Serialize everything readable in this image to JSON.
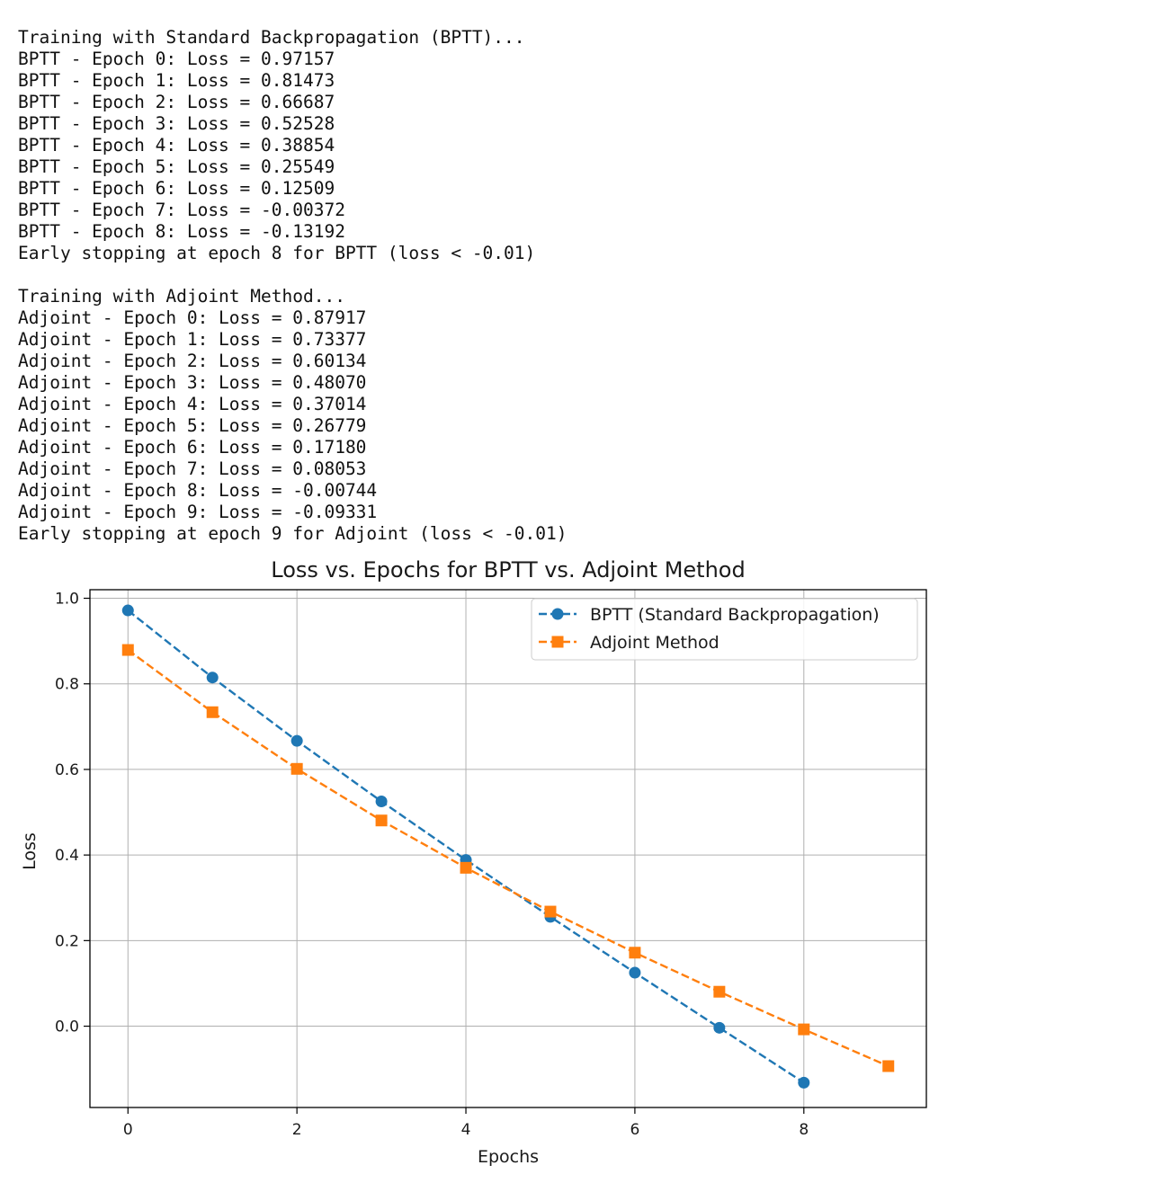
{
  "console_output": [
    "Training with Standard Backpropagation (BPTT)...",
    "BPTT - Epoch 0: Loss = 0.97157",
    "BPTT - Epoch 1: Loss = 0.81473",
    "BPTT - Epoch 2: Loss = 0.66687",
    "BPTT - Epoch 3: Loss = 0.52528",
    "BPTT - Epoch 4: Loss = 0.38854",
    "BPTT - Epoch 5: Loss = 0.25549",
    "BPTT - Epoch 6: Loss = 0.12509",
    "BPTT - Epoch 7: Loss = -0.00372",
    "BPTT - Epoch 8: Loss = -0.13192",
    "Early stopping at epoch 8 for BPTT (loss < -0.01)",
    "",
    "Training with Adjoint Method...",
    "Adjoint - Epoch 0: Loss = 0.87917",
    "Adjoint - Epoch 1: Loss = 0.73377",
    "Adjoint - Epoch 2: Loss = 0.60134",
    "Adjoint - Epoch 3: Loss = 0.48070",
    "Adjoint - Epoch 4: Loss = 0.37014",
    "Adjoint - Epoch 5: Loss = 0.26779",
    "Adjoint - Epoch 6: Loss = 0.17180",
    "Adjoint - Epoch 7: Loss = 0.08053",
    "Adjoint - Epoch 8: Loss = -0.00744",
    "Adjoint - Epoch 9: Loss = -0.09331",
    "Early stopping at epoch 9 for Adjoint (loss < -0.01)"
  ],
  "chart_data": {
    "type": "line",
    "title": "Loss vs. Epochs for BPTT vs. Adjoint Method",
    "xlabel": "Epochs",
    "ylabel": "Loss",
    "xlim": [
      -0.45,
      9.45
    ],
    "ylim": [
      -0.19,
      1.02
    ],
    "xticks": [
      0,
      2,
      4,
      6,
      8
    ],
    "xtick_labels": [
      "0",
      "2",
      "4",
      "6",
      "8"
    ],
    "yticks": [
      0.0,
      0.2,
      0.4,
      0.6,
      0.8,
      1.0
    ],
    "ytick_labels": [
      "0.0",
      "0.2",
      "0.4",
      "0.6",
      "0.8",
      "1.0"
    ],
    "grid": true,
    "legend_position": "top-right",
    "series": [
      {
        "name": "BPTT (Standard Backpropagation)",
        "marker": "circle",
        "line_style": "dashed",
        "color": "#1f77b4",
        "x": [
          0,
          1,
          2,
          3,
          4,
          5,
          6,
          7,
          8
        ],
        "y": [
          0.97157,
          0.81473,
          0.66687,
          0.52528,
          0.38854,
          0.25549,
          0.12509,
          -0.00372,
          -0.13192
        ]
      },
      {
        "name": "Adjoint Method",
        "marker": "square",
        "line_style": "dashed",
        "color": "#ff7f0e",
        "x": [
          0,
          1,
          2,
          3,
          4,
          5,
          6,
          7,
          8,
          9
        ],
        "y": [
          0.87917,
          0.73377,
          0.60134,
          0.4807,
          0.37014,
          0.26779,
          0.1718,
          0.08053,
          -0.00744,
          -0.09331
        ]
      }
    ]
  }
}
